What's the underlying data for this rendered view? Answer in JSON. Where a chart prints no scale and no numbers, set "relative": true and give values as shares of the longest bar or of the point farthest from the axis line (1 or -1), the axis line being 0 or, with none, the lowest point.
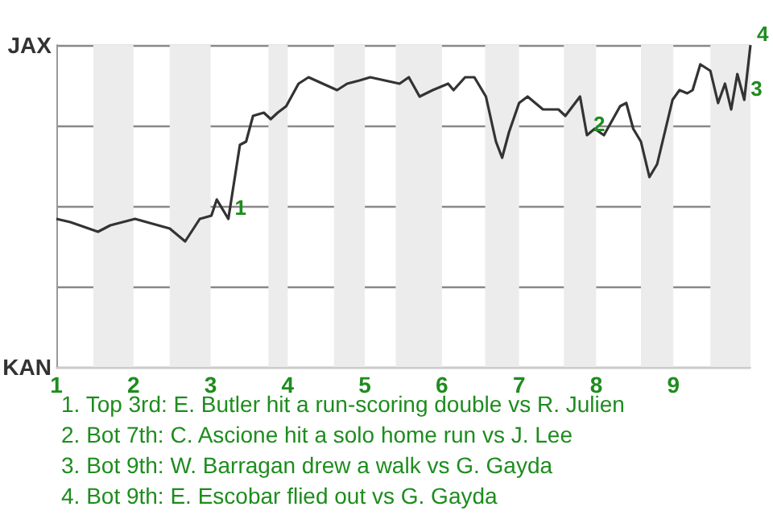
{
  "chart_data": {
    "type": "line",
    "x": [
      1,
      1.18,
      1.54,
      1.7,
      2.02,
      2.47,
      2.67,
      2.86,
      3.01,
      3.08,
      3.23,
      3.38,
      3.46,
      3.55,
      3.69,
      3.78,
      3.87,
      3.98,
      4.14,
      4.27,
      4.64,
      4.77,
      4.93,
      5.07,
      5.45,
      5.57,
      5.71,
      5.88,
      6.08,
      6.15,
      6.3,
      6.42,
      6.57,
      6.7,
      6.78,
      6.87,
      7,
      7.11,
      7.31,
      7.51,
      7.6,
      7.79,
      7.88,
      7.98,
      8.1,
      8.31,
      8.39,
      8.48,
      8.58,
      8.69,
      8.79,
      8.99,
      9.08,
      9.18,
      9.25,
      9.35,
      9.48,
      9.58,
      9.67,
      9.75,
      9.83,
      9.92,
      10
    ],
    "series": [
      {
        "color": "#333333",
        "values": [
          0.46,
          0.45,
          0.42,
          0.44,
          0.46,
          0.43,
          0.39,
          0.46,
          0.47,
          0.52,
          0.46,
          0.69,
          0.7,
          0.78,
          0.79,
          0.77,
          0.79,
          0.81,
          0.88,
          0.9,
          0.86,
          0.88,
          0.89,
          0.9,
          0.88,
          0.9,
          0.84,
          0.86,
          0.88,
          0.86,
          0.9,
          0.9,
          0.84,
          0.7,
          0.65,
          0.73,
          0.82,
          0.84,
          0.8,
          0.8,
          0.78,
          0.84,
          0.72,
          0.74,
          0.72,
          0.81,
          0.82,
          0.74,
          0.7,
          0.59,
          0.63,
          0.83,
          0.86,
          0.85,
          0.86,
          0.94,
          0.92,
          0.82,
          0.88,
          0.8,
          0.91,
          0.83,
          1
        ]
      }
    ],
    "relative": true,
    "xlim": [
      1,
      10
    ],
    "xticks": [
      1,
      2,
      3,
      4,
      5,
      6,
      7,
      8,
      9
    ],
    "marker": "none",
    "grid": "y",
    "bands": [
      {
        "axis": "x",
        "from": 1.48,
        "to": 2,
        "color": "#ececec"
      },
      {
        "axis": "x",
        "from": 2.47,
        "to": 3,
        "color": "#ececec"
      },
      {
        "axis": "x",
        "from": 3.75,
        "to": 4,
        "color": "#ececec"
      },
      {
        "axis": "x",
        "from": 4.6,
        "to": 5,
        "color": "#ececec"
      },
      {
        "axis": "x",
        "from": 5.4,
        "to": 6,
        "color": "#ececec"
      },
      {
        "axis": "x",
        "from": 6.56,
        "to": 7,
        "color": "#ececec"
      },
      {
        "axis": "x",
        "from": 7.58,
        "to": 8,
        "color": "#ececec"
      },
      {
        "axis": "x",
        "from": 8.58,
        "to": 9,
        "color": "#ececec"
      },
      {
        "axis": "x",
        "from": 9.48,
        "to": 10,
        "color": "#ececec"
      }
    ],
    "annotations": [
      {
        "text": "JAX"
      },
      {
        "text": "KAN"
      },
      {
        "text": "1",
        "x": 3.23,
        "y": 0.46
      },
      {
        "text": "2",
        "x": 7.88,
        "y": 0.72
      },
      {
        "text": "3",
        "x": 9.92,
        "y": 0.83
      },
      {
        "text": "4",
        "x": 10,
        "y": 1
      },
      "1. Top 3rd: E. Butler hit a run-scoring double vs R. Julien",
      "2. Bot 7th: C. Ascione hit a solo home run vs J. Lee",
      "3. Bot 9th: W. Barragan drew a walk vs G. Gayda",
      "4. Bot 9th: E. Escobar flied out vs G. Gayda"
    ]
  }
}
